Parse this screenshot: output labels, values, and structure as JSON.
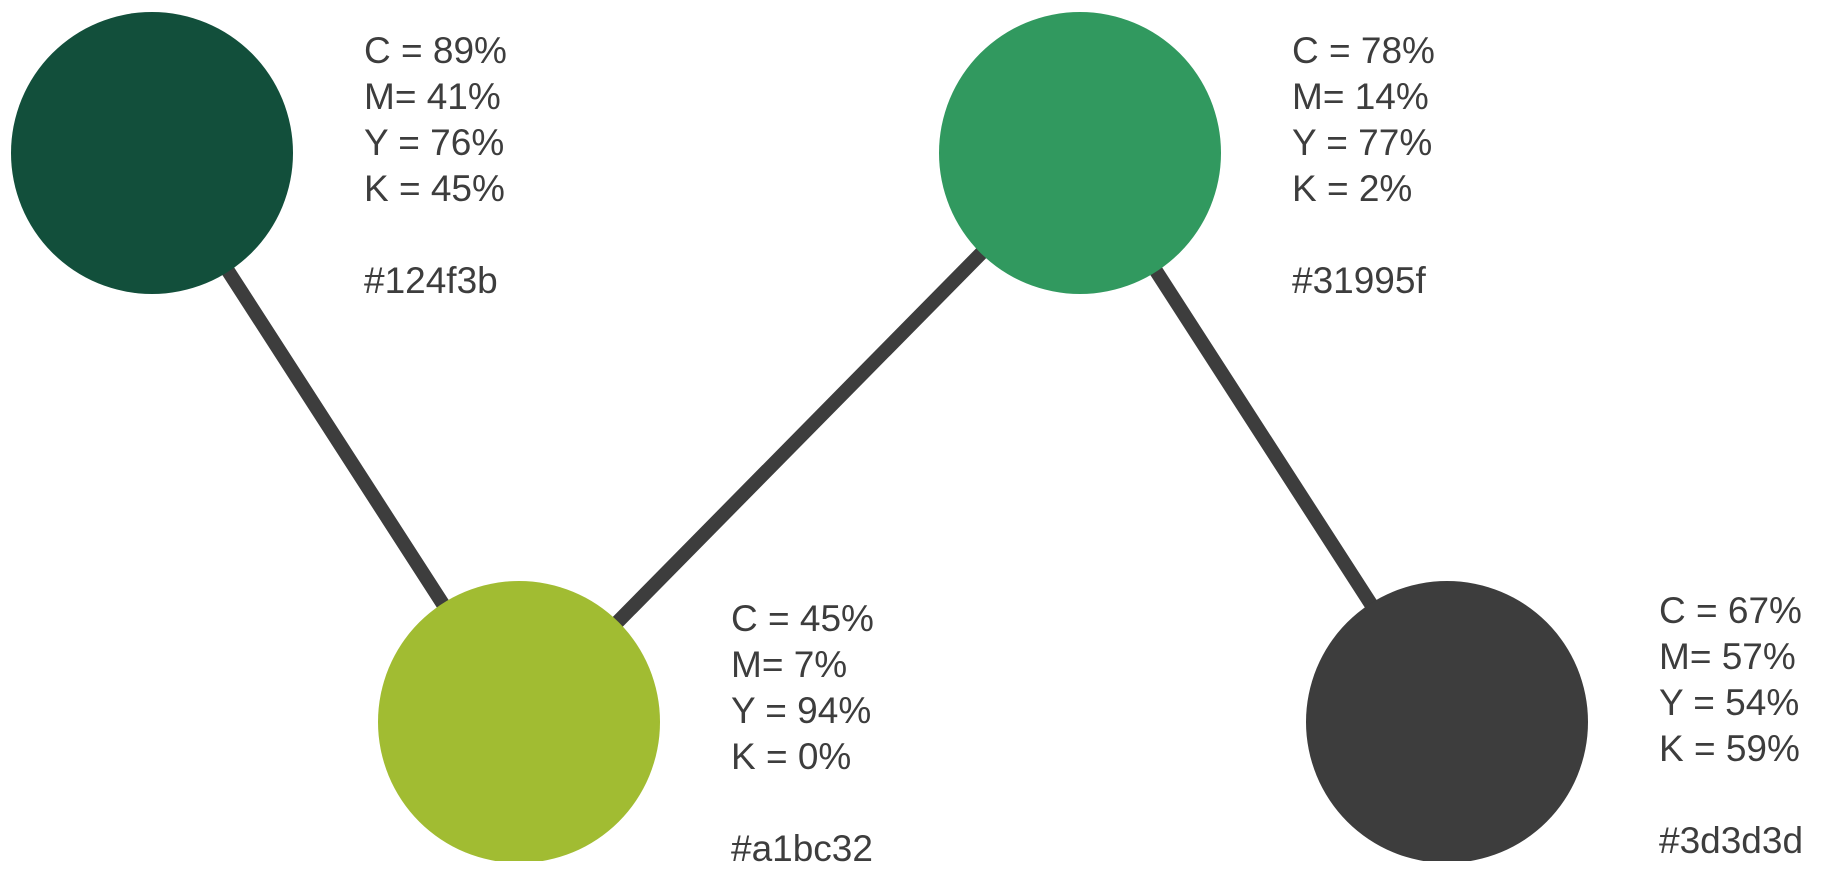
{
  "connector_color": "#3d3d3d",
  "text_color": "#3d3d3d",
  "swatches": [
    {
      "id": "dark-green",
      "hex_color": "#124f3b",
      "c": "C = 89%",
      "m": "M= 41%",
      "y": "Y = 76%",
      "k": "K = 45%",
      "hex": "#124f3b"
    },
    {
      "id": "green",
      "hex_color": "#31995f",
      "c": "C = 78%",
      "m": "M= 14%",
      "y": "Y = 77%",
      "k": "K = 2%",
      "hex": "#31995f"
    },
    {
      "id": "lime",
      "hex_color": "#a1bc32",
      "c": "C = 45%",
      "m": "M= 7%",
      "y": "Y = 94%",
      "k": "K = 0%",
      "hex": "#a1bc32"
    },
    {
      "id": "charcoal",
      "hex_color": "#3d3d3d",
      "c": "C = 67%",
      "m": "M= 57%",
      "y": "Y = 54%",
      "k": "K = 59%",
      "hex": "#3d3d3d"
    }
  ]
}
